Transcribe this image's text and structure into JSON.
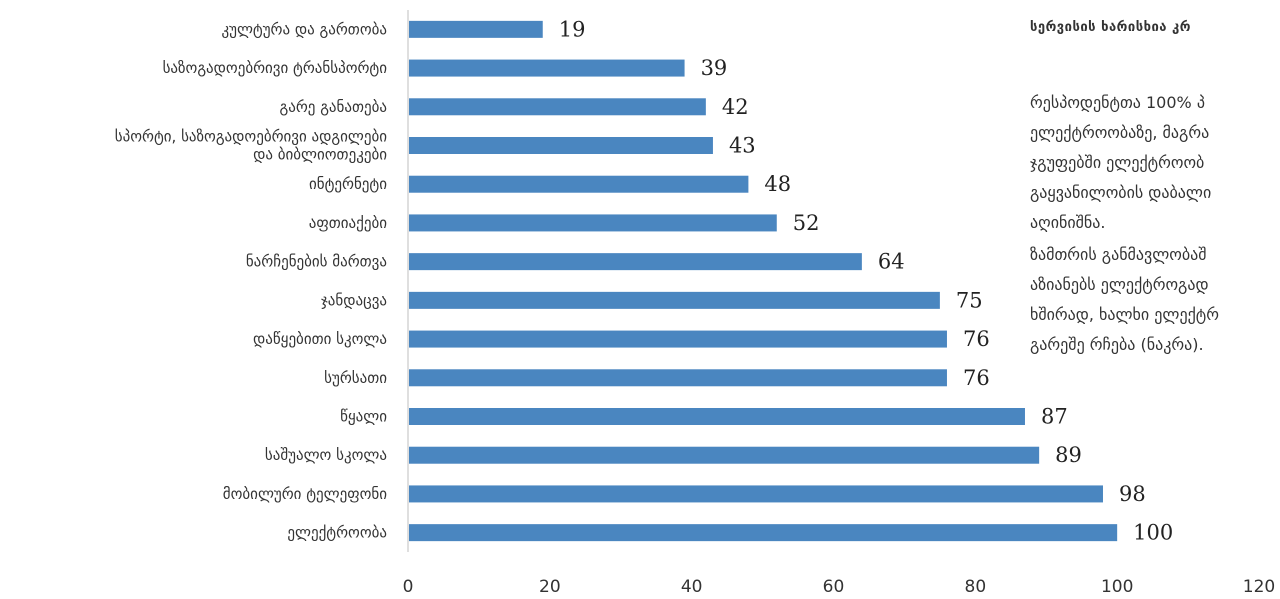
{
  "chart_data": {
    "type": "bar",
    "orientation": "horizontal",
    "categories": [
      "კულტურა და გართობა",
      "საზოგადოებრივი ტრანსპორტი",
      "გარე განათება",
      "სპორტი, საზოგადოებრივი ადგილები და ბიბლიოთეკები",
      "ინტერნეტი",
      "აფთიაქები",
      "ნარჩენების მართვა",
      "ჯანდაცვა",
      "დაწყებითი სკოლა",
      "სურსათი",
      "წყალი",
      "საშუალო სკოლა",
      "მობილური ტელეფონი",
      "ელექტროობა"
    ],
    "category_lines": [
      [
        "კულტურა და გართობა"
      ],
      [
        "საზოგადოებრივი ტრანსპორტი"
      ],
      [
        "გარე განათება"
      ],
      [
        "სპორტი, საზოგადოებრივი ადგილები",
        "და ბიბლიოთეკები"
      ],
      [
        "ინტერნეტი"
      ],
      [
        "აფთიაქები"
      ],
      [
        "ნარჩენების მართვა"
      ],
      [
        "ჯანდაცვა"
      ],
      [
        "დაწყებითი სკოლა"
      ],
      [
        "სურსათი"
      ],
      [
        "წყალი"
      ],
      [
        "საშუალო სკოლა"
      ],
      [
        "მობილური ტელეფონი"
      ],
      [
        "ელექტროობა"
      ]
    ],
    "values": [
      19,
      39,
      42,
      43,
      48,
      52,
      64,
      75,
      76,
      76,
      87,
      89,
      98,
      100
    ],
    "xlim": [
      0,
      120
    ],
    "xticks": [
      0,
      20,
      40,
      60,
      80,
      100,
      120
    ],
    "grid": false,
    "bar_color": "#4a86c0"
  },
  "side_text": {
    "heading": "სერვისის ხარისხია კრ",
    "lines": [
      "რესპოდენტთა 100% პ",
      "ელექტროობაზე, მაგრა",
      "ჯგუფებში ელექტროობ",
      "გაყვანილობის დაბალი",
      "აღინიშნა.",
      "ზამთრის განმავლობაშ",
      "აზიანებს ელექტროგად",
      "ხშირად, ხალხი ელექტრ",
      "გარეშე რჩება (ნაკრა)."
    ]
  }
}
